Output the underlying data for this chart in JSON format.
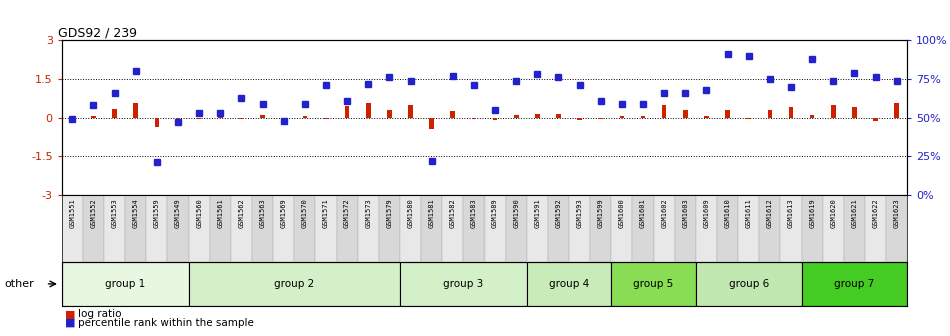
{
  "title": "GDS92 / 239",
  "samples": [
    "GSM1551",
    "GSM1552",
    "GSM1553",
    "GSM1554",
    "GSM1559",
    "GSM1549",
    "GSM1560",
    "GSM1561",
    "GSM1562",
    "GSM1563",
    "GSM1569",
    "GSM1570",
    "GSM1571",
    "GSM1572",
    "GSM1573",
    "GSM1579",
    "GSM1580",
    "GSM1581",
    "GSM1582",
    "GSM1583",
    "GSM1589",
    "GSM1590",
    "GSM1591",
    "GSM1592",
    "GSM1593",
    "GSM1599",
    "GSM1600",
    "GSM1601",
    "GSM1602",
    "GSM1603",
    "GSM1609",
    "GSM1610",
    "GSM1611",
    "GSM1612",
    "GSM1613",
    "GSM1619",
    "GSM1620",
    "GSM1621",
    "GSM1622",
    "GSM1623"
  ],
  "log_ratio": [
    -0.05,
    0.05,
    0.35,
    0.55,
    -0.35,
    -0.15,
    -0.05,
    0.08,
    -0.05,
    0.12,
    -0.05,
    0.05,
    -0.05,
    0.45,
    0.55,
    0.3,
    0.5,
    -0.45,
    0.25,
    -0.05,
    -0.1,
    0.1,
    0.15,
    0.15,
    -0.1,
    -0.05,
    0.05,
    0.05,
    0.5,
    0.3,
    0.05,
    0.3,
    -0.05,
    0.3,
    0.4,
    0.1,
    0.5,
    0.4,
    -0.15,
    0.55
  ],
  "percentile_pct": [
    49,
    58,
    66,
    80,
    21,
    47,
    53,
    53,
    63,
    59,
    48,
    59,
    71,
    61,
    72,
    76,
    74,
    22,
    77,
    71,
    55,
    74,
    78,
    76,
    71,
    61,
    59,
    59,
    66,
    66,
    68,
    91,
    90,
    75,
    70,
    88,
    74,
    79,
    76,
    74
  ],
  "groups": [
    {
      "name": "group 1",
      "start": 0,
      "end": 6
    },
    {
      "name": "group 2",
      "start": 6,
      "end": 16
    },
    {
      "name": "group 3",
      "start": 16,
      "end": 22
    },
    {
      "name": "group 4",
      "start": 22,
      "end": 26
    },
    {
      "name": "group 5",
      "start": 26,
      "end": 30
    },
    {
      "name": "group 6",
      "start": 30,
      "end": 35
    },
    {
      "name": "group 7",
      "start": 35,
      "end": 40
    }
  ],
  "group_colors": {
    "group 1": "#e8f8e0",
    "group 2": "#d4f0c8",
    "group 3": "#d4f0c8",
    "group 4": "#c8ecb8",
    "group 5": "#88dd55",
    "group 6": "#c0e8b0",
    "group 7": "#44cc22"
  },
  "ylim_left": [
    -3,
    3
  ],
  "yticks_left": [
    -3,
    -1.5,
    0,
    1.5,
    3
  ],
  "ytick_labels_left": [
    "-3",
    "-1.5",
    "0",
    "1.5",
    "3"
  ],
  "yticks_right_pct": [
    0,
    25,
    50,
    75,
    100
  ],
  "ytick_labels_right": [
    "0%",
    "25%",
    "50%",
    "75%",
    "100%"
  ],
  "hlines": [
    -1.5,
    0,
    1.5
  ],
  "bar_color_red": "#cc2200",
  "bar_color_blue": "#2222cc",
  "ylabel_left_color": "#cc2200",
  "ylabel_right_color": "#2222cc",
  "legend_red": "log ratio",
  "legend_blue": "percentile rank within the sample",
  "other_label": "other",
  "plot_bgcolor": "#ffffff",
  "tick_label_bgcolor": "#e8e8e8"
}
